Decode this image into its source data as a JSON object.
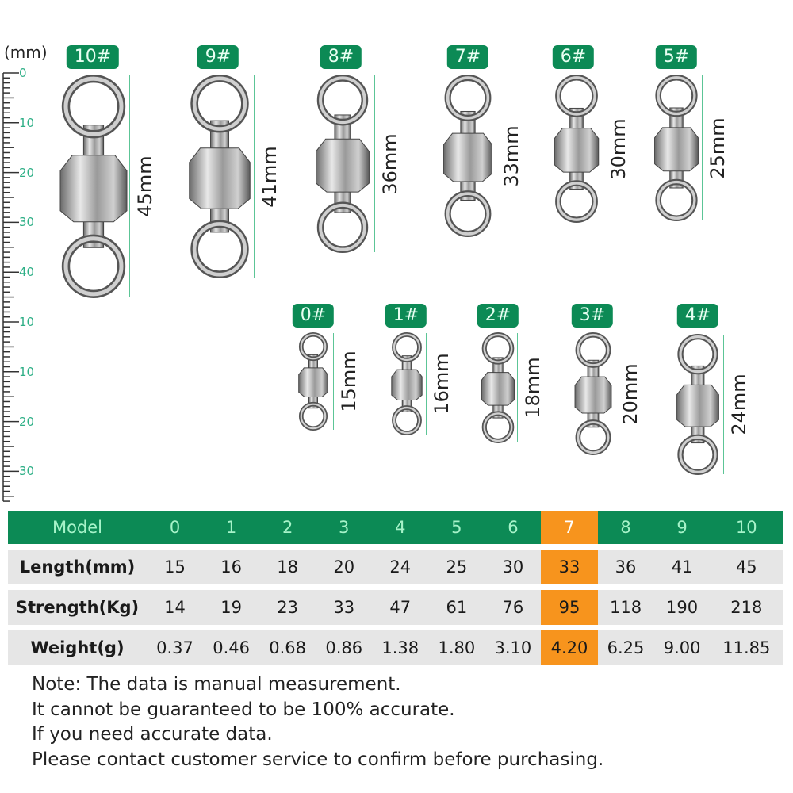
{
  "colors": {
    "green": "#0c8a55",
    "orange": "#f7941d",
    "row": "#e6e6e6",
    "ruler": "#2eaf86",
    "dimline": "#5cc596"
  },
  "ruler": {
    "unit": "(mm)",
    "labels": [
      {
        "t": "0",
        "mm": 0
      },
      {
        "t": "10",
        "mm": 10
      },
      {
        "t": "20",
        "mm": 20
      },
      {
        "t": "30",
        "mm": 30
      },
      {
        "t": "40",
        "mm": 40
      },
      {
        "t": "10",
        "mm": 50
      },
      {
        "t": "10",
        "mm": 60
      },
      {
        "t": "20",
        "mm": 70
      },
      {
        "t": "30",
        "mm": 80
      }
    ]
  },
  "swivels": [
    {
      "model": "10#",
      "length": "45mm"
    },
    {
      "model": "9#",
      "length": "41mm"
    },
    {
      "model": "8#",
      "length": "36mm"
    },
    {
      "model": "7#",
      "length": "33mm"
    },
    {
      "model": "6#",
      "length": "30mm"
    },
    {
      "model": "5#",
      "length": "25mm"
    },
    {
      "model": "0#",
      "length": "15mm"
    },
    {
      "model": "1#",
      "length": "16mm"
    },
    {
      "model": "2#",
      "length": "18mm"
    },
    {
      "model": "3#",
      "length": "20mm"
    },
    {
      "model": "4#",
      "length": "24mm"
    }
  ],
  "table": {
    "highlight_column": "7",
    "header": [
      "Model",
      "0",
      "1",
      "2",
      "3",
      "4",
      "5",
      "6",
      "7",
      "8",
      "9",
      "10"
    ],
    "rows": [
      [
        "Length(mm)",
        "15",
        "16",
        "18",
        "20",
        "24",
        "25",
        "30",
        "33",
        "36",
        "41",
        "45"
      ],
      [
        "Strength(Kg)",
        "14",
        "19",
        "23",
        "33",
        "47",
        "61",
        "76",
        "95",
        "118",
        "190",
        "218"
      ],
      [
        "Weight(g)",
        "0.37",
        "0.46",
        "0.68",
        "0.86",
        "1.38",
        "1.80",
        "3.10",
        "4.20",
        "6.25",
        "9.00",
        "11.85"
      ]
    ]
  },
  "notes": [
    "Note: The data is manual measurement.",
    "It cannot be guaranteed to be 100% accurate.",
    "If you need accurate data.",
    "Please contact customer service to confirm before purchasing."
  ]
}
